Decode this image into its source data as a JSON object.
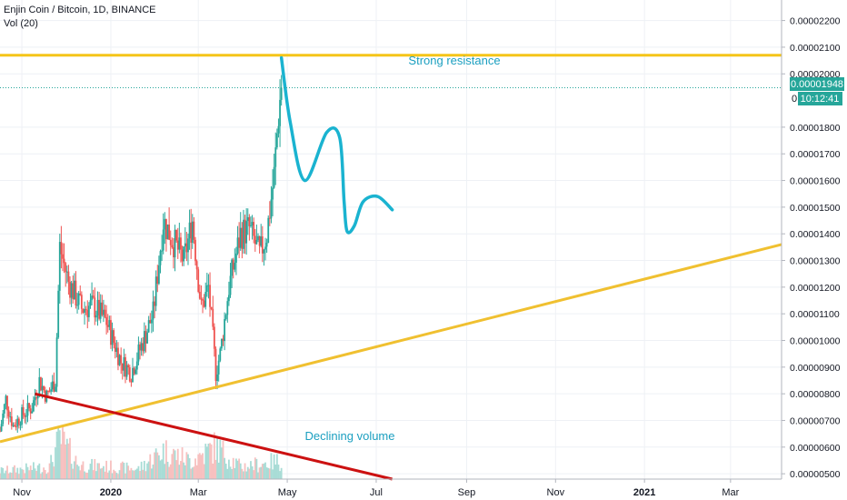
{
  "header": {
    "symbol_line": "Enjin Coin / Bitcoin, 1D, BINANCE",
    "volume_line": "Vol (20)"
  },
  "price_badge": {
    "price": "0.00001948",
    "countdown": "10:12:41",
    "partial_label": "0."
  },
  "annotations": {
    "resistance": "Strong resistance",
    "volume": "Declining volume"
  },
  "colors": {
    "up": "#26a69a",
    "down": "#ef5350",
    "volume_up": "#a8dcd6",
    "volume_down": "#f7c0bf",
    "resistance_line": "#f5c518",
    "support_line": "#f0c030",
    "volume_trend_line": "#cc1111",
    "projection": "#1ab3d0",
    "price_line": "#26a69a",
    "grid": "#eef1f5",
    "axis_text": "#131722"
  },
  "chart_data": {
    "type": "candlestick",
    "y_axis": {
      "range": [
        4.8e-06,
        2.277e-05
      ],
      "ticks": [
        "0.00000500",
        "0.00000600",
        "0.00000700",
        "0.00000800",
        "0.00000900",
        "0.00001000",
        "0.00001100",
        "0.00001200",
        "0.00001300",
        "0.00001400",
        "0.00001500",
        "0.00001600",
        "0.00001700",
        "0.00001800",
        "0.00002000",
        "0.00002100",
        "0.00002200"
      ]
    },
    "x_axis": {
      "range": [
        "2019-10-17",
        "2021-04-05"
      ],
      "ticks": [
        {
          "label": "Nov",
          "date": "2019-11-01"
        },
        {
          "label": "2020",
          "date": "2020-01-01"
        },
        {
          "label": "Mar",
          "date": "2020-03-01"
        },
        {
          "label": "May",
          "date": "2020-05-01"
        },
        {
          "label": "Jul",
          "date": "2020-07-01"
        },
        {
          "label": "Sep",
          "date": "2020-09-01"
        },
        {
          "label": "Nov",
          "date": "2020-11-01"
        },
        {
          "label": "2021",
          "date": "2021-01-01"
        },
        {
          "label": "Mar",
          "date": "2021-03-01"
        }
      ]
    },
    "grid": true,
    "last_price": 1.948e-05,
    "price_path": [
      {
        "date": "2019-10-17",
        "close": 6.6e-06
      },
      {
        "date": "2019-10-21",
        "close": 7.8e-06
      },
      {
        "date": "2019-10-26",
        "close": 6.8e-06
      },
      {
        "date": "2019-11-01",
        "close": 7.2e-06
      },
      {
        "date": "2019-11-08",
        "close": 7.5e-06
      },
      {
        "date": "2019-11-13",
        "close": 8.5e-06
      },
      {
        "date": "2019-11-18",
        "close": 7.9e-06
      },
      {
        "date": "2019-11-24",
        "close": 8.5e-06
      },
      {
        "date": "2019-11-27",
        "close": 1.35e-05
      },
      {
        "date": "2019-12-03",
        "close": 1.22e-05
      },
      {
        "date": "2019-12-12",
        "close": 1.12e-05
      },
      {
        "date": "2019-12-20",
        "close": 1.13e-05
      },
      {
        "date": "2019-12-29",
        "close": 1.07e-05
      },
      {
        "date": "2020-01-08",
        "close": 9.2e-06
      },
      {
        "date": "2020-01-15",
        "close": 8.8e-06
      },
      {
        "date": "2020-01-22",
        "close": 9.8e-06
      },
      {
        "date": "2020-01-30",
        "close": 1.1e-05
      },
      {
        "date": "2020-02-06",
        "close": 1.45e-05
      },
      {
        "date": "2020-02-12",
        "close": 1.38e-05
      },
      {
        "date": "2020-02-20",
        "close": 1.3e-05
      },
      {
        "date": "2020-02-26",
        "close": 1.45e-05
      },
      {
        "date": "2020-03-03",
        "close": 1.12e-05
      },
      {
        "date": "2020-03-08",
        "close": 1.2e-05
      },
      {
        "date": "2020-03-13",
        "close": 8.8e-06
      },
      {
        "date": "2020-03-16",
        "close": 9.5e-06
      },
      {
        "date": "2020-03-22",
        "close": 1.2e-05
      },
      {
        "date": "2020-03-30",
        "close": 1.4e-05
      },
      {
        "date": "2020-04-05",
        "close": 1.42e-05
      },
      {
        "date": "2020-04-12",
        "close": 1.32e-05
      },
      {
        "date": "2020-04-17",
        "close": 1.4e-05
      },
      {
        "date": "2020-04-22",
        "close": 1.62e-05
      },
      {
        "date": "2020-04-25",
        "close": 1.85e-05
      },
      {
        "date": "2020-04-27",
        "close": 1.95e-05
      }
    ],
    "volume_profile": [
      {
        "date": "2019-10-17",
        "volume": 0.2
      },
      {
        "date": "2019-11-20",
        "volume": 0.3
      },
      {
        "date": "2019-11-27",
        "volume": 1.0
      },
      {
        "date": "2019-12-10",
        "volume": 0.35
      },
      {
        "date": "2020-01-20",
        "volume": 0.25
      },
      {
        "date": "2020-02-06",
        "volume": 0.7
      },
      {
        "date": "2020-02-25",
        "volume": 0.45
      },
      {
        "date": "2020-03-13",
        "volume": 0.8
      },
      {
        "date": "2020-03-30",
        "volume": 0.3
      },
      {
        "date": "2020-04-27",
        "volume": 0.45
      }
    ],
    "drawings": [
      {
        "kind": "horizontal",
        "name": "resistance",
        "price": 2.07e-05
      },
      {
        "kind": "trendline",
        "name": "support",
        "from": {
          "date": "2019-10-17",
          "price": 6.2e-06
        },
        "to": {
          "date": "2021-04-05",
          "price": 1.36e-05
        }
      },
      {
        "kind": "trendline",
        "name": "volume-trend",
        "from": {
          "date": "2019-11-10",
          "price": 8e-06
        },
        "to": {
          "date": "2020-07-12",
          "price": 4.8e-06
        }
      },
      {
        "kind": "projection",
        "points": [
          {
            "date": "2020-04-27",
            "price": 2.06e-05
          },
          {
            "date": "2020-05-03",
            "price": 1.82e-05
          },
          {
            "date": "2020-05-13",
            "price": 1.6e-05
          },
          {
            "date": "2020-05-28",
            "price": 1.78e-05
          },
          {
            "date": "2020-06-06",
            "price": 1.76e-05
          },
          {
            "date": "2020-06-09",
            "price": 1.52e-05
          },
          {
            "date": "2020-06-11",
            "price": 1.41e-05
          },
          {
            "date": "2020-06-16",
            "price": 1.43e-05
          },
          {
            "date": "2020-06-22",
            "price": 1.52e-05
          },
          {
            "date": "2020-07-02",
            "price": 1.54e-05
          },
          {
            "date": "2020-07-12",
            "price": 1.49e-05
          }
        ]
      }
    ]
  }
}
